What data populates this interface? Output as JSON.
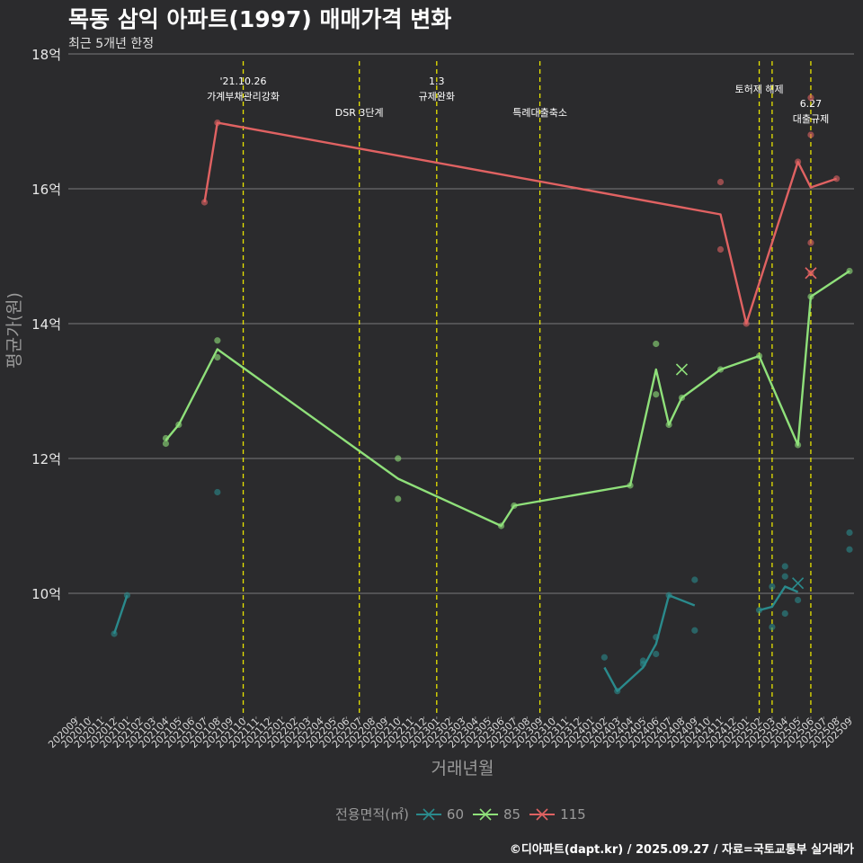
{
  "title": "목동 삼익 아파트(1997) 매매가격 변화",
  "subtitle": "최근 5개년 한정",
  "caption": "©디아파트(dapt.kr) / 2025.09.27 / 자료=국토교통부 실거래가",
  "colors": {
    "s60": "#2a8a8c",
    "s85": "#8fe07a",
    "s115": "#e06262",
    "event": "#e8e400",
    "grid": "#7a7a7a",
    "bg": "#2b2b2d"
  },
  "chart_data": {
    "type": "line",
    "xlabel": "거래년월",
    "ylabel": "평균가(원)",
    "ylim": [
      8.2,
      18.0
    ],
    "y_ticks": [
      10,
      12,
      14,
      16,
      18
    ],
    "y_tick_labels": [
      "10억",
      "12억",
      "14억",
      "16억",
      "18억"
    ],
    "grid": true,
    "legend_position": "bottom",
    "legend_title": "전용면적(㎡)",
    "categories": [
      "202009",
      "202010",
      "202011",
      "202012",
      "202101",
      "202102",
      "202103",
      "202104",
      "202105",
      "202106",
      "202107",
      "202108",
      "202109",
      "202110",
      "202111",
      "202112",
      "202201",
      "202202",
      "202203",
      "202204",
      "202205",
      "202206",
      "202207",
      "202208",
      "202209",
      "202210",
      "202211",
      "202212",
      "202301",
      "202302",
      "202303",
      "202304",
      "202305",
      "202306",
      "202307",
      "202308",
      "202309",
      "202310",
      "202311",
      "202312",
      "202401",
      "202402",
      "202403",
      "202404",
      "202405",
      "202406",
      "202407",
      "202408",
      "202409",
      "202410",
      "202411",
      "202412",
      "202501",
      "202502",
      "202503",
      "202504",
      "202505",
      "202506",
      "202507",
      "202508",
      "202509"
    ],
    "series": [
      {
        "name": "60",
        "color_key": "s60",
        "line": [
          [
            "202012",
            9.4
          ],
          [
            "202101",
            9.97
          ]
        ],
        "line2": [
          [
            "202402",
            8.9
          ],
          [
            "202403",
            8.55
          ],
          [
            "202405",
            8.9
          ],
          [
            "202406",
            9.25
          ],
          [
            "202407",
            9.97
          ],
          [
            "202409",
            9.82
          ]
        ],
        "line3": [
          [
            "202502",
            9.75
          ],
          [
            "202503",
            9.8
          ],
          [
            "202504",
            10.1
          ],
          [
            "202505",
            10.02
          ]
        ],
        "points": [
          [
            "202012",
            9.4
          ],
          [
            "202101",
            9.97
          ],
          [
            "202108",
            11.5
          ],
          [
            "202402",
            9.05
          ],
          [
            "202403",
            8.55
          ],
          [
            "202405",
            8.95
          ],
          [
            "202405",
            9.0
          ],
          [
            "202406",
            9.1
          ],
          [
            "202406",
            9.35
          ],
          [
            "202407",
            9.97
          ],
          [
            "202409",
            10.2
          ],
          [
            "202409",
            9.45
          ],
          [
            "202502",
            9.75
          ],
          [
            "202503",
            9.5
          ],
          [
            "202503",
            10.1
          ],
          [
            "202504",
            9.7
          ],
          [
            "202504",
            10.25
          ],
          [
            "202504",
            10.4
          ],
          [
            "202505",
            9.9
          ],
          [
            "202509",
            10.9
          ],
          [
            "202509",
            10.65
          ]
        ],
        "cancelled": [
          [
            "202505",
            10.15
          ]
        ]
      },
      {
        "name": "85",
        "color_key": "s85",
        "line": [
          [
            "202104",
            12.27
          ],
          [
            "202105",
            12.5
          ],
          [
            "202108",
            13.62
          ],
          [
            "202210",
            11.7
          ],
          [
            "202306",
            11.0
          ],
          [
            "202307",
            11.3
          ],
          [
            "202404",
            11.6
          ],
          [
            "202406",
            13.32
          ],
          [
            "202407",
            12.5
          ],
          [
            "202408",
            12.9
          ],
          [
            "202411",
            13.32
          ],
          [
            "202502",
            13.52
          ],
          [
            "202505",
            12.2
          ],
          [
            "202506",
            14.4
          ],
          [
            "202509",
            14.78
          ]
        ],
        "points": [
          [
            "202104",
            12.22
          ],
          [
            "202104",
            12.3
          ],
          [
            "202105",
            12.5
          ],
          [
            "202108",
            13.5
          ],
          [
            "202108",
            13.75
          ],
          [
            "202210",
            12.0
          ],
          [
            "202210",
            11.4
          ],
          [
            "202306",
            11.0
          ],
          [
            "202307",
            11.3
          ],
          [
            "202404",
            11.6
          ],
          [
            "202406",
            13.7
          ],
          [
            "202406",
            12.95
          ],
          [
            "202407",
            12.5
          ],
          [
            "202408",
            12.9
          ],
          [
            "202411",
            13.32
          ],
          [
            "202502",
            13.52
          ],
          [
            "202505",
            12.2
          ],
          [
            "202506",
            14.4
          ],
          [
            "202509",
            14.78
          ]
        ],
        "cancelled": [
          [
            "202408",
            13.32
          ]
        ]
      },
      {
        "name": "115",
        "color_key": "s115",
        "line": [
          [
            "202107",
            15.8
          ],
          [
            "202108",
            16.98
          ],
          [
            "202411",
            15.62
          ],
          [
            "202501",
            14.0
          ],
          [
            "202505",
            16.4
          ],
          [
            "202506",
            16.02
          ],
          [
            "202508",
            16.15
          ]
        ],
        "points": [
          [
            "202107",
            15.8
          ],
          [
            "202108",
            16.98
          ],
          [
            "202411",
            16.1
          ],
          [
            "202411",
            15.1
          ],
          [
            "202501",
            14.0
          ],
          [
            "202505",
            16.4
          ],
          [
            "202506",
            17.35
          ],
          [
            "202506",
            16.8
          ],
          [
            "202506",
            15.2
          ],
          [
            "202506",
            14.75
          ],
          [
            "202508",
            16.15
          ]
        ],
        "cancelled": [
          [
            "202506",
            14.75
          ]
        ]
      }
    ],
    "events": [
      {
        "x": "202110",
        "lines": [
          "'21.10.26",
          "가계부채관리강화"
        ],
        "pos": "high"
      },
      {
        "x": "202207",
        "lines": [
          "DSR 3단계"
        ],
        "pos": "low"
      },
      {
        "x": "202301",
        "lines": [
          "1.3",
          "규제완화"
        ],
        "pos": "high"
      },
      {
        "x": "202309",
        "lines": [
          "특례대출축소"
        ],
        "pos": "low"
      },
      {
        "x": "202502",
        "lines": [
          "토허제 해제"
        ],
        "pos": "mid"
      },
      {
        "x": "202503",
        "lines": [],
        "pos": "none"
      },
      {
        "x": "202506",
        "lines": [
          "6.27",
          "대출규제"
        ],
        "pos": "right"
      }
    ]
  }
}
